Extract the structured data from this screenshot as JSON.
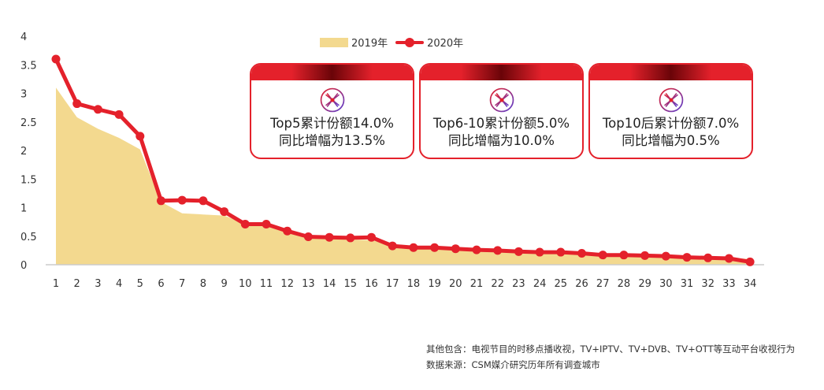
{
  "chart_data": {
    "type": "line",
    "x": [
      1,
      2,
      3,
      4,
      5,
      6,
      7,
      8,
      9,
      10,
      11,
      12,
      13,
      14,
      15,
      16,
      17,
      18,
      19,
      20,
      21,
      22,
      23,
      24,
      25,
      26,
      27,
      28,
      29,
      30,
      31,
      32,
      33,
      34
    ],
    "x_tick_labels": [
      "1",
      "2",
      "3",
      "4",
      "5",
      "6",
      "7",
      "8",
      "9",
      "10",
      "11",
      "12",
      "13",
      "14",
      "15",
      "16",
      "17",
      "18",
      "19",
      "20",
      "21",
      "22",
      "23",
      "24",
      "25",
      "26",
      "27",
      "28",
      "29",
      "30",
      "31",
      "32",
      "33",
      "34"
    ],
    "y_tick_labels": [
      "0",
      "0.5",
      "1",
      "1.5",
      "2",
      "2.5",
      "3",
      "3.5",
      "4"
    ],
    "ylim": [
      0,
      4
    ],
    "title": "",
    "xlabel": "",
    "ylabel": "",
    "legend_position": "top",
    "series": [
      {
        "name": "2019年",
        "type": "area",
        "color": "#f3d98f",
        "values": [
          3.1,
          2.58,
          2.38,
          2.22,
          2.02,
          1.1,
          0.9,
          0.88,
          0.86,
          0.72,
          0.68,
          0.56,
          0.46,
          0.45,
          0.44,
          0.43,
          0.34,
          0.31,
          0.3,
          0.28,
          0.27,
          0.25,
          0.24,
          0.22,
          0.21,
          0.2,
          0.19,
          0.18,
          0.17,
          0.16,
          0.15,
          0.14,
          0.12,
          0.1
        ]
      },
      {
        "name": "2020年",
        "type": "line",
        "color": "#e4212b",
        "values": [
          3.6,
          2.82,
          2.72,
          2.63,
          2.25,
          1.12,
          1.13,
          1.12,
          0.93,
          0.71,
          0.71,
          0.59,
          0.49,
          0.48,
          0.47,
          0.48,
          0.33,
          0.3,
          0.3,
          0.28,
          0.26,
          0.25,
          0.23,
          0.22,
          0.22,
          0.2,
          0.17,
          0.17,
          0.16,
          0.15,
          0.13,
          0.12,
          0.11,
          0.05
        ]
      }
    ]
  },
  "legend": {
    "item_2019": "2019年",
    "item_2020": "2020年"
  },
  "boxes": [
    {
      "line1": "Top5累计份额14.0%",
      "line2": "同比增幅为13.5%"
    },
    {
      "line1": "Top6-10累计份额5.0%",
      "line2": "同比增幅为10.0%"
    },
    {
      "line1": "Top10后累计份额7.0%",
      "line2": "同比增幅为0.5%"
    }
  ],
  "notes": {
    "line1": "其他包含：电视节目的时移点播收视，TV+IPTV、TV+DVB、TV+OTT等互动平台收视行为",
    "line2": "数据来源：CSM媒介研究历年所有调查城市"
  },
  "colors": {
    "accent": "#e4212b",
    "area": "#f3d98f",
    "banner_dark": "#6a0408"
  },
  "icons": {
    "box_icon": "network-emblem-icon"
  }
}
